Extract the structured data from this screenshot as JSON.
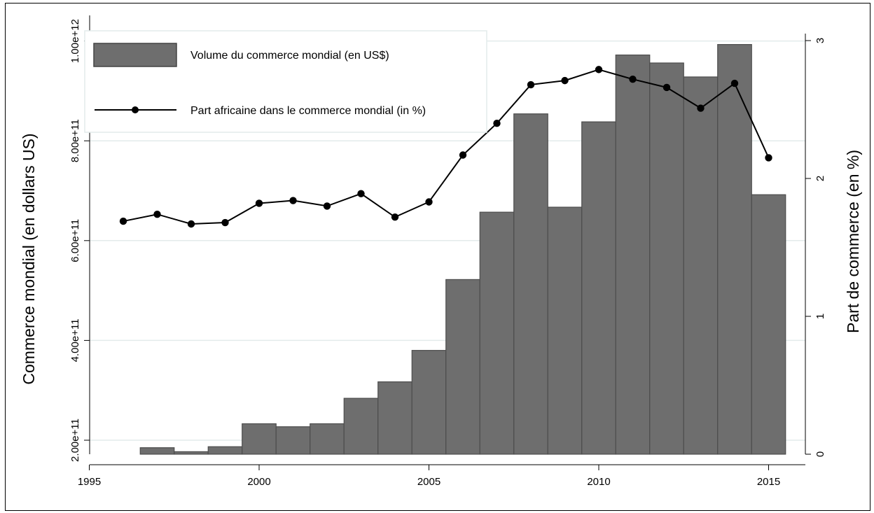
{
  "chart_data": {
    "type": "bar",
    "x": [
      1997,
      1998,
      1999,
      2000,
      2001,
      2002,
      2003,
      2004,
      2005,
      2006,
      2007,
      2008,
      2009,
      2010,
      2011,
      2012,
      2013,
      2014,
      2015
    ],
    "series": [
      {
        "name": "Volume du commerce mondial (en US$)",
        "type": "bar",
        "axis": "left",
        "color": "#6e6e6e",
        "values": [
          185000000000.0,
          177000000000.0,
          187000000000.0,
          233000000000.0,
          227000000000.0,
          233000000000.0,
          284000000000.0,
          317000000000.0,
          380000000000.0,
          522000000000.0,
          657000000000.0,
          854000000000.0,
          667000000000.0,
          838000000000.0,
          972000000000.0,
          956000000000.0,
          928000000000.0,
          993000000000.0,
          692000000000.0
        ]
      },
      {
        "name": "Part africaine dans le commerce mondial (in %)",
        "type": "line",
        "axis": "right",
        "color": "#000000",
        "x": [
          1996,
          1997,
          1998,
          1999,
          2000,
          2001,
          2002,
          2003,
          2004,
          2005,
          2006,
          2007,
          2008,
          2009,
          2010,
          2011,
          2012,
          2013,
          2014,
          2015
        ],
        "values": [
          1.69,
          1.74,
          1.67,
          1.68,
          1.82,
          1.84,
          1.8,
          1.89,
          1.72,
          1.83,
          2.17,
          2.4,
          2.68,
          2.71,
          2.79,
          2.72,
          2.66,
          2.51,
          2.69,
          2.15
        ]
      }
    ],
    "xlabel": "",
    "ylabel": "Commerce mondial (en dollars US)",
    "y2label": "Part de commerce (en %)",
    "xlim": [
      1995,
      2016
    ],
    "ylim": [
      172000000000.0,
      1000000000000.0
    ],
    "y2lim": [
      0,
      3
    ],
    "xticks": [
      "1995",
      "2000",
      "2005",
      "2010",
      "2015"
    ],
    "yticks": [
      "2.00e+11",
      "4.00e+11",
      "6.00e+11",
      "8.00e+11",
      "1.00e+12"
    ],
    "y2ticks": [
      "0",
      "1",
      "2",
      "3"
    ],
    "grid": true,
    "legend_position": "top-left"
  }
}
